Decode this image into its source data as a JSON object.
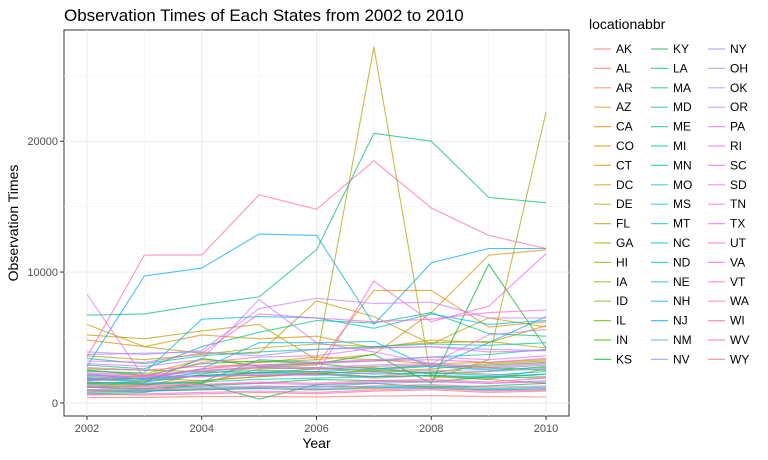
{
  "chart_data": {
    "type": "line",
    "title": "Observation Times of Each States from 2002 to 2010",
    "xlabel": "Year",
    "ylabel": "Observation Times",
    "x": [
      2002,
      2003,
      2004,
      2005,
      2006,
      2007,
      2008,
      2009,
      2010
    ],
    "xlim": [
      2001.6,
      2010.4
    ],
    "ylim": [
      -1000,
      28500
    ],
    "x_ticks": [
      2002,
      2004,
      2006,
      2008,
      2010
    ],
    "y_ticks": [
      0,
      10000,
      20000
    ],
    "x_tick_labels": [
      "2002",
      "2004",
      "2006",
      "2008",
      "2010"
    ],
    "y_tick_labels": [
      "0",
      "10000",
      "20000"
    ],
    "grid": true,
    "legend": {
      "title": "locationabbr",
      "position": "right"
    },
    "series": [
      {
        "name": "AK",
        "color": "#F8766D",
        "values": [
          400,
          420,
          480,
          500,
          460,
          520,
          560,
          480,
          450
        ]
      },
      {
        "name": "AL",
        "color": "#F37B59",
        "values": [
          1600,
          1500,
          1700,
          2000,
          2200,
          1900,
          2100,
          1800,
          1500
        ]
      },
      {
        "name": "AR",
        "color": "#ED8141",
        "values": [
          1200,
          1000,
          1600,
          2400,
          2300,
          2000,
          2400,
          2200,
          2000
        ]
      },
      {
        "name": "AZ",
        "color": "#E7861B",
        "values": [
          1500,
          1300,
          2200,
          2700,
          2900,
          8600,
          8600,
          5800,
          6200
        ]
      },
      {
        "name": "CA",
        "color": "#DF8C00",
        "values": [
          2100,
          1900,
          2600,
          3100,
          3300,
          3700,
          6900,
          11300,
          11700
        ]
      },
      {
        "name": "CO",
        "color": "#D89000",
        "values": [
          4800,
          4300,
          5200,
          4900,
          5100,
          4200,
          4800,
          4600,
          5900
        ]
      },
      {
        "name": "CT",
        "color": "#CF9400",
        "values": [
          2500,
          2200,
          3300,
          3100,
          3500,
          3300,
          3000,
          3100,
          3300
        ]
      },
      {
        "name": "DC",
        "color": "#C59900",
        "values": [
          6000,
          4300,
          3800,
          3800,
          7800,
          6600,
          4500,
          6500,
          5800
        ]
      },
      {
        "name": "DE",
        "color": "#BB9D00",
        "values": [
          900,
          900,
          1000,
          1100,
          1000,
          1100,
          1200,
          1000,
          1000
        ]
      },
      {
        "name": "FL",
        "color": "#AFA100",
        "values": [
          5200,
          4900,
          5500,
          6000,
          3300,
          27200,
          1800,
          3300,
          22200
        ]
      },
      {
        "name": "GA",
        "color": "#A3A500",
        "values": [
          3600,
          3300,
          3700,
          4200,
          4500,
          4300,
          4600,
          4700,
          4200
        ]
      },
      {
        "name": "HI",
        "color": "#95A900",
        "values": [
          1300,
          1400,
          1500,
          2600,
          2700,
          2400,
          2600,
          3000,
          3200
        ]
      },
      {
        "name": "IA",
        "color": "#85AD00",
        "values": [
          1800,
          1900,
          1700,
          2000,
          2300,
          2400,
          2000,
          1800,
          2600
        ]
      },
      {
        "name": "ID",
        "color": "#72B000",
        "values": [
          1900,
          1700,
          2100,
          2100,
          2200,
          2500,
          2300,
          2900,
          3100
        ]
      },
      {
        "name": "IL",
        "color": "#5BB300",
        "values": [
          2600,
          2500,
          2400,
          2300,
          2600,
          2700,
          2200,
          2400,
          2800
        ]
      },
      {
        "name": "IN",
        "color": "#39B600",
        "values": [
          2500,
          2100,
          3000,
          3200,
          3000,
          2600,
          2900,
          2700,
          2500
        ]
      },
      {
        "name": "KS",
        "color": "#00B81F",
        "values": [
          1500,
          1600,
          3400,
          2800,
          3000,
          3700,
          1500,
          10600,
          4200
        ]
      },
      {
        "name": "KY",
        "color": "#00BA42",
        "values": [
          1200,
          1100,
          1300,
          1500,
          1800,
          1700,
          1600,
          2000,
          1900
        ]
      },
      {
        "name": "LA",
        "color": "#00BC59",
        "values": [
          700,
          800,
          1500,
          300,
          1400,
          1500,
          1200,
          1300,
          1500
        ]
      },
      {
        "name": "MA",
        "color": "#00BE6C",
        "values": [
          6700,
          6800,
          7500,
          8100,
          11700,
          20600,
          20000,
          15700,
          15300
        ]
      },
      {
        "name": "MD",
        "color": "#00C07D",
        "values": [
          2900,
          2600,
          4300,
          5400,
          6300,
          6100,
          6900,
          5300,
          5100
        ]
      },
      {
        "name": "ME",
        "color": "#00C08E",
        "values": [
          1700,
          1900,
          2100,
          2300,
          2200,
          2000,
          2100,
          1900,
          2200
        ]
      },
      {
        "name": "MI",
        "color": "#00C19E",
        "values": [
          1600,
          1400,
          1600,
          3300,
          3100,
          3200,
          3500,
          3700,
          4100
        ]
      },
      {
        "name": "MN",
        "color": "#00C1AC",
        "values": [
          3400,
          3000,
          3600,
          3900,
          4100,
          4300,
          4500,
          4400,
          4600
        ]
      },
      {
        "name": "MO",
        "color": "#00C0BA",
        "values": [
          2000,
          1800,
          2300,
          2500,
          2400,
          2600,
          2800,
          2500,
          2700
        ]
      },
      {
        "name": "MS",
        "color": "#00BFC7",
        "values": [
          1400,
          1500,
          1600,
          1800,
          1900,
          2000,
          2100,
          2000,
          2200
        ]
      },
      {
        "name": "MT",
        "color": "#00BDD3",
        "values": [
          1000,
          900,
          1100,
          1200,
          1300,
          1200,
          1100,
          1000,
          1100
        ]
      },
      {
        "name": "NC",
        "color": "#00BADE",
        "values": [
          2400,
          2300,
          6400,
          6600,
          6500,
          5700,
          6800,
          6000,
          6300
        ]
      },
      {
        "name": "ND",
        "color": "#00B6E9",
        "values": [
          800,
          900,
          1000,
          1100,
          1000,
          1200,
          1300,
          1100,
          1200
        ]
      },
      {
        "name": "NE",
        "color": "#00B1F3",
        "values": [
          2200,
          1800,
          2600,
          4600,
          4600,
          4700,
          2700,
          4600,
          6600
        ]
      },
      {
        "name": "NH",
        "color": "#00ABFD",
        "values": [
          1900,
          1600,
          2100,
          2300,
          2400,
          2200,
          2300,
          2100,
          2400
        ]
      },
      {
        "name": "NJ",
        "color": "#00A5FF",
        "values": [
          2800,
          9700,
          10300,
          12900,
          12800,
          6000,
          10700,
          11800,
          11800
        ]
      },
      {
        "name": "NM",
        "color": "#619CFF",
        "values": [
          1800,
          1600,
          2400,
          2700,
          2600,
          2500,
          2800,
          2600,
          2900
        ]
      },
      {
        "name": "NV",
        "color": "#7F96FF",
        "values": [
          1000,
          1100,
          1200,
          1300,
          1200,
          1500,
          1600,
          1500,
          1700
        ]
      },
      {
        "name": "NY",
        "color": "#9590FF",
        "values": [
          3700,
          3800,
          3900,
          3600,
          4100,
          4200,
          4300,
          4100,
          4000
        ]
      },
      {
        "name": "OH",
        "color": "#A58AFF",
        "values": [
          2100,
          2000,
          2400,
          2800,
          2700,
          2900,
          3000,
          2800,
          3100
        ]
      },
      {
        "name": "OK",
        "color": "#B385FF",
        "values": [
          1700,
          1900,
          2000,
          2200,
          2100,
          2300,
          2500,
          2400,
          2600
        ]
      },
      {
        "name": "OR",
        "color": "#C77CFF",
        "values": [
          3900,
          3700,
          4000,
          7200,
          8000,
          7600,
          7700,
          6500,
          6500
        ]
      },
      {
        "name": "PA",
        "color": "#D376FF",
        "values": [
          3000,
          2800,
          3300,
          7900,
          4600,
          3900,
          3000,
          5200,
          5600
        ]
      },
      {
        "name": "RI",
        "color": "#DE71F9",
        "values": [
          8300,
          1900,
          2600,
          2900,
          3100,
          3300,
          3500,
          3300,
          3600
        ]
      },
      {
        "name": "SC",
        "color": "#E76BF3",
        "values": [
          2200,
          2000,
          3100,
          3500,
          3600,
          4200,
          4300,
          3900,
          4000
        ]
      },
      {
        "name": "SD",
        "color": "#EF67EB",
        "values": [
          600,
          700,
          800,
          900,
          800,
          1000,
          1100,
          900,
          1000
        ]
      },
      {
        "name": "TN",
        "color": "#F564E3",
        "values": [
          1800,
          2100,
          2000,
          2100,
          2200,
          9300,
          6200,
          7400,
          11400
        ]
      },
      {
        "name": "TX",
        "color": "#F962DD",
        "values": [
          3200,
          3100,
          3800,
          6800,
          6500,
          6200,
          6400,
          6900,
          7100
        ]
      },
      {
        "name": "UT",
        "color": "#FC61D5",
        "values": [
          1200,
          1300,
          1400,
          1500,
          1400,
          1600,
          1700,
          1500,
          1600
        ]
      },
      {
        "name": "VA",
        "color": "#FF61CC",
        "values": [
          2700,
          2500,
          2800,
          2900,
          3000,
          3200,
          3300,
          3100,
          3400
        ]
      },
      {
        "name": "VT",
        "color": "#FF62BC",
        "values": [
          1300,
          1200,
          1400,
          1600,
          1500,
          1700,
          1800,
          1600,
          1900
        ]
      },
      {
        "name": "WA",
        "color": "#FF65AE",
        "values": [
          3500,
          11300,
          11300,
          15900,
          14800,
          18500,
          14900,
          12800,
          11800
        ]
      },
      {
        "name": "WI",
        "color": "#FF689F",
        "values": [
          2300,
          2100,
          2500,
          2700,
          2600,
          2800,
          2900,
          2700,
          3000
        ]
      },
      {
        "name": "WV",
        "color": "#FF6C91",
        "values": [
          900,
          1000,
          1100,
          1200,
          1100,
          1300,
          1400,
          1200,
          1300
        ]
      },
      {
        "name": "WY",
        "color": "#FC717F",
        "values": [
          700,
          600,
          700,
          800,
          700,
          900,
          1000,
          800,
          900
        ]
      }
    ]
  }
}
